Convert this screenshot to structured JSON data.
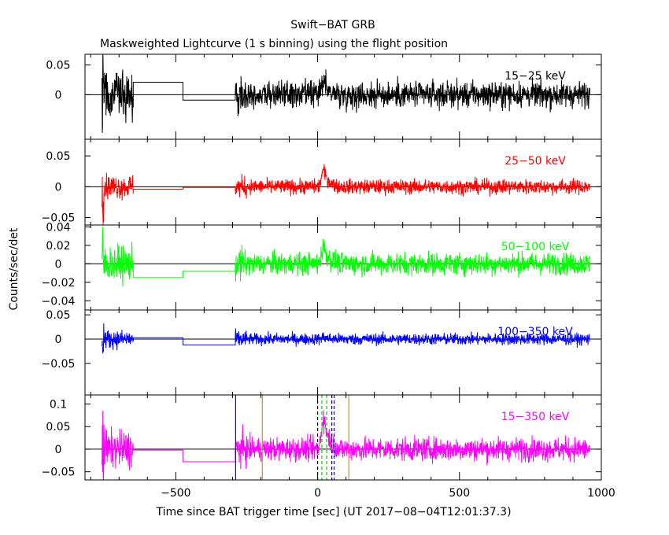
{
  "chart_data": {
    "type": "line",
    "title": "Swift−BAT GRB",
    "subtitle": "Maskweighted Lightcurve (1 s binning) using the flight position",
    "xlabel": "Time since BAT trigger time [sec] (UT 2017−08−04T12:01:37.3)",
    "ylabel": "Counts/sec/det",
    "xlim": [
      -820,
      1000
    ],
    "x_ticks": [
      {
        "value": -500,
        "label": "−500"
      },
      {
        "value": 0,
        "label": "0"
      },
      {
        "value": 500,
        "label": "500"
      },
      {
        "value": 1000,
        "label": "1000"
      }
    ],
    "panels": [
      {
        "band": "15−25 keV",
        "color": "#000000",
        "ylim": [
          -0.075,
          0.068
        ],
        "y_ticks": [
          {
            "value": 0.05,
            "label": "0.05"
          },
          {
            "value": 0,
            "label": "0"
          }
        ],
        "noise": 0.011,
        "gap_levels": [
          0.021,
          -0.009
        ],
        "peak": 0.024,
        "spike": 0.06
      },
      {
        "band": "25−50 keV",
        "color": "#ff0000",
        "ylim": [
          -0.062,
          0.077
        ],
        "y_ticks": [
          {
            "value": 0.05,
            "label": "0.05"
          },
          {
            "value": 0,
            "label": "0"
          },
          {
            "value": -0.05,
            "label": "−0.05"
          }
        ],
        "noise": 0.006,
        "gap_levels": [
          -0.004,
          -0.001
        ],
        "peak": 0.028,
        "spike": 0.05
      },
      {
        "band": "50−100 keV",
        "color": "#00ff00",
        "ylim": [
          -0.05,
          0.042
        ],
        "y_ticks": [
          {
            "value": 0.04,
            "label": "0.04"
          },
          {
            "value": 0.02,
            "label": "0.02"
          },
          {
            "value": 0,
            "label": "0"
          },
          {
            "value": -0.02,
            "label": "−0.02"
          },
          {
            "value": -0.04,
            "label": "−0.04"
          }
        ],
        "noise": 0.006,
        "gap_levels": [
          -0.015,
          -0.008
        ],
        "peak": 0.02,
        "spike": 0.036
      },
      {
        "band": "100−350 keV",
        "color": "#0000ff",
        "ylim": [
          -0.115,
          0.06
        ],
        "y_ticks": [
          {
            "value": 0.05,
            "label": "0.05"
          },
          {
            "value": 0,
            "label": "0"
          },
          {
            "value": -0.05,
            "label": "−0.05"
          }
        ],
        "noise": 0.006,
        "gap_levels": [
          0.003,
          -0.012
        ],
        "peak": 0.004,
        "spike": 0.04
      },
      {
        "band": "15−350 keV",
        "color": "#ff00ff",
        "ylim": [
          -0.068,
          0.12
        ],
        "y_ticks": [
          {
            "value": 0.1,
            "label": "0.1"
          },
          {
            "value": 0.05,
            "label": "0.05"
          },
          {
            "value": 0,
            "label": "0"
          },
          {
            "value": -0.05,
            "label": "−0.05"
          }
        ],
        "noise": 0.013,
        "gap_levels": [
          -0.002,
          -0.028
        ],
        "peak": 0.075,
        "spike": 0.11
      }
    ],
    "data_segments": [
      [
        -760,
        -650
      ],
      [
        -290,
        960
      ]
    ],
    "gap_steps": [
      -650,
      -475,
      -290
    ],
    "burst": {
      "start": 5,
      "peak": 20,
      "end": 70
    },
    "marker_lines": [
      {
        "x": -289,
        "color": "#0000ff",
        "style": "solid"
      },
      {
        "x": -195,
        "color": "#d98c1a",
        "style": "solid"
      },
      {
        "x": 110,
        "color": "#d98c1a",
        "style": "solid"
      },
      {
        "x": 0,
        "color": "#000000",
        "style": "dashed"
      },
      {
        "x": 15,
        "color": "#00cc00",
        "style": "dashed"
      },
      {
        "x": 32,
        "color": "#00cc00",
        "style": "dashed"
      },
      {
        "x": 50,
        "color": "#000000",
        "style": "dashed"
      },
      {
        "x": 58,
        "color": "#0000ff",
        "style": "dashed"
      }
    ]
  }
}
